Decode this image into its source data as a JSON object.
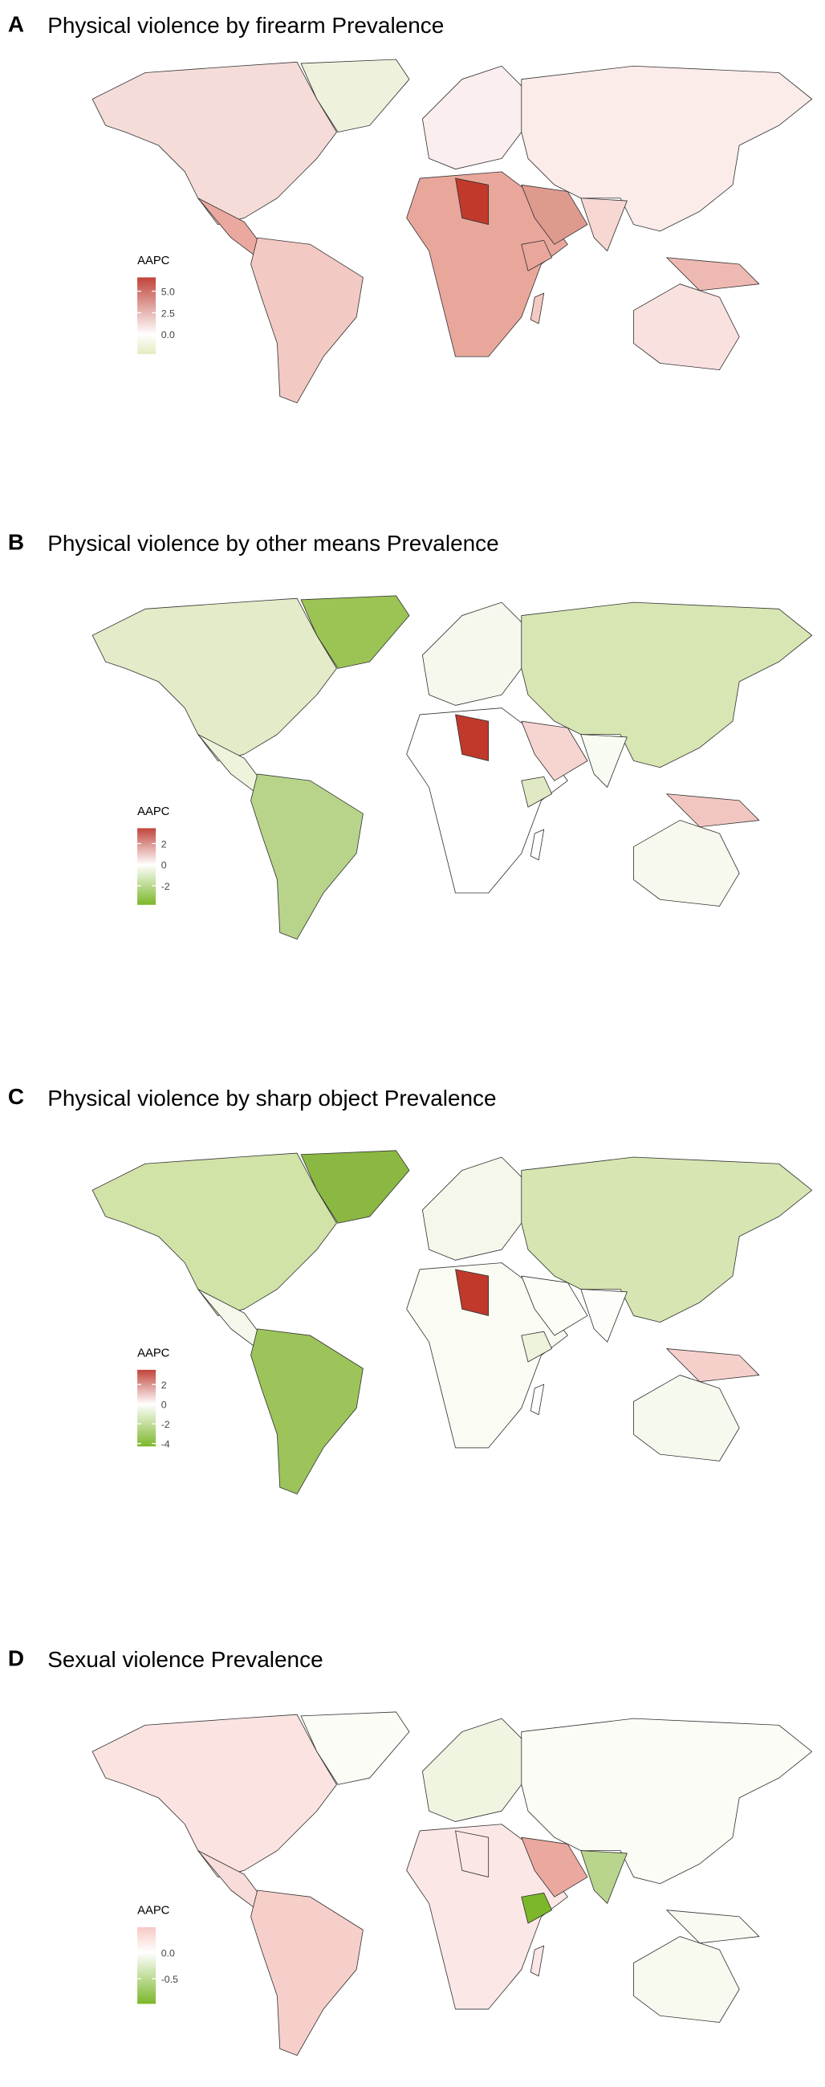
{
  "panels": [
    {
      "label": "A",
      "title": "Physical violence by firearm Prevalence",
      "legend": {
        "title": "AAPC",
        "lim": [
          -2.3,
          6.6
        ],
        "ticks": [
          {
            "value": 5,
            "label": "5.0"
          },
          {
            "value": 2.5,
            "label": "2.5"
          },
          {
            "value": 0,
            "label": "0.0"
          }
        ],
        "colors": [
          "#e4ebc0",
          "#ffffff",
          "#c0443a"
        ]
      }
    },
    {
      "label": "B",
      "title": "Physical violence by other means Prevalence",
      "legend": {
        "title": "AAPC",
        "lim": [
          -3.8,
          3.45
        ],
        "ticks": [
          2,
          0,
          -2
        ],
        "colors": [
          "#7cb72a",
          "#ffffff",
          "#c0443a"
        ]
      }
    },
    {
      "label": "C",
      "title": "Physical violence by sharp object Prevalence",
      "legend": {
        "title": "AAPC",
        "lim": [
          -4.3,
          3.5
        ],
        "ticks": [
          2,
          0,
          -2,
          -4
        ],
        "colors": [
          "#7cb72a",
          "#ffffff",
          "#c0443a"
        ]
      }
    },
    {
      "label": "D",
      "title": "Sexual violence Prevalence",
      "legend": {
        "title": "AAPC",
        "lim": [
          -0.98,
          0.48
        ],
        "ticks": [
          {
            "value": 0,
            "label": "0.0"
          },
          {
            "value": -0.5,
            "label": "-0.5"
          }
        ],
        "colors": [
          "#7cb72a",
          "#ffffff",
          "#f6c9c4"
        ]
      }
    }
  ]
}
